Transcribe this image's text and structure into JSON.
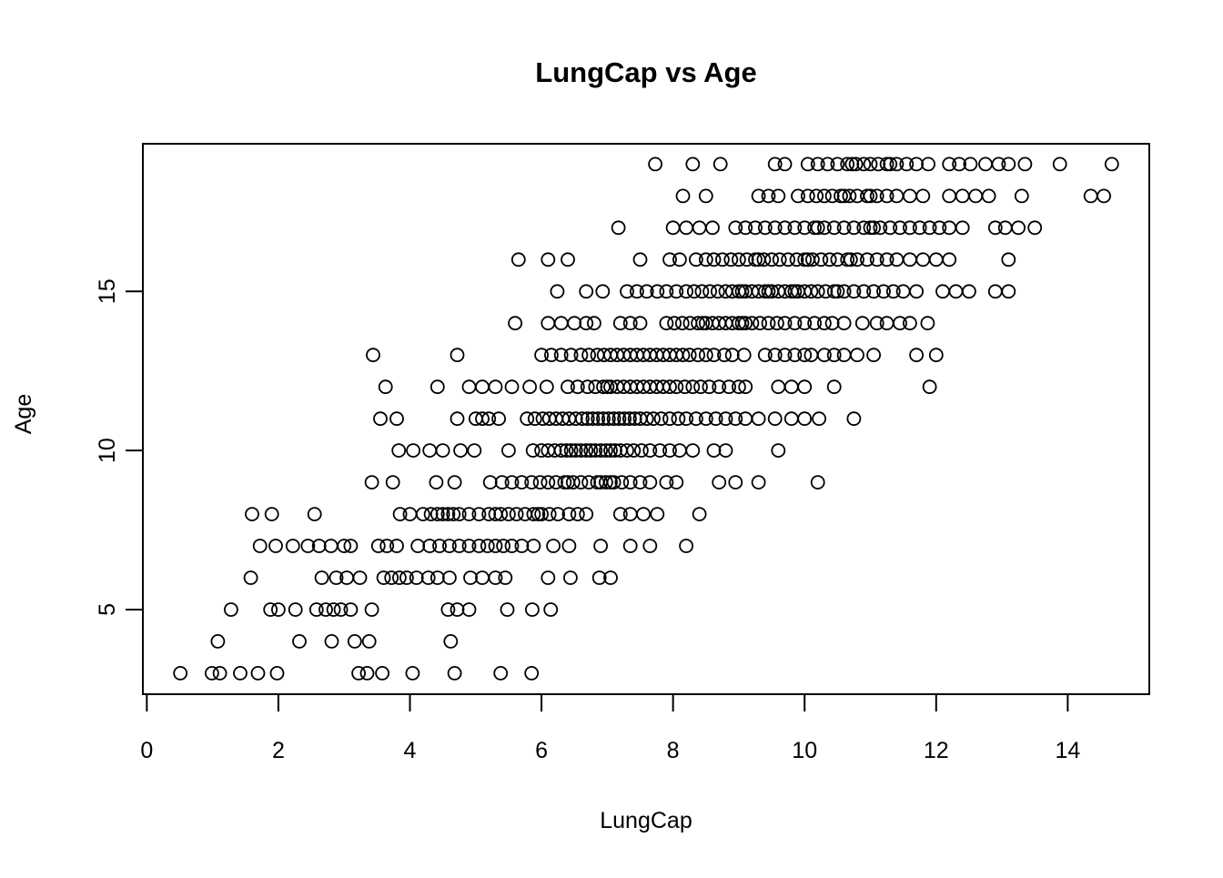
{
  "chart_data": {
    "type": "scatter",
    "title": "LungCap vs Age",
    "xlabel": "LungCap",
    "ylabel": "Age",
    "xlim": [
      -0.06,
      15.24
    ],
    "ylim": [
      2.34,
      19.64
    ],
    "x_ticks": [
      0,
      2,
      4,
      6,
      8,
      10,
      12,
      14
    ],
    "y_ticks": [
      5,
      10,
      15
    ],
    "grid": false,
    "legend": "none",
    "marker": "open-circle",
    "marker_color": "#000000",
    "points_by_age": {
      "3": [
        0.51,
        0.99,
        1.11,
        1.42,
        1.69,
        1.98,
        3.22,
        3.35,
        3.58,
        4.04,
        4.68,
        5.38,
        5.85
      ],
      "4": [
        1.08,
        2.32,
        2.81,
        3.16,
        3.38,
        4.62
      ],
      "5": [
        1.28,
        1.88,
        2.0,
        2.26,
        2.58,
        2.72,
        2.84,
        2.95,
        3.1,
        3.42,
        4.58,
        4.72,
        4.9,
        5.48,
        5.86,
        6.14
      ],
      "6": [
        1.58,
        2.66,
        2.88,
        3.04,
        3.24,
        3.6,
        3.72,
        3.84,
        3.95,
        4.1,
        4.28,
        4.42,
        4.6,
        4.92,
        5.1,
        5.3,
        5.45,
        6.1,
        6.44,
        6.88,
        7.05
      ],
      "7": [
        1.72,
        1.96,
        2.22,
        2.45,
        2.62,
        2.8,
        3.0,
        3.1,
        3.52,
        3.65,
        3.8,
        4.12,
        4.3,
        4.45,
        4.6,
        4.75,
        4.9,
        5.05,
        5.18,
        5.3,
        5.42,
        5.55,
        5.7,
        5.88,
        6.18,
        6.42,
        6.9,
        7.35,
        7.65,
        8.2
      ],
      "8": [
        1.6,
        1.9,
        2.55,
        3.85,
        4.0,
        4.2,
        4.32,
        4.42,
        4.5,
        4.58,
        4.66,
        4.75,
        4.9,
        5.05,
        5.2,
        5.3,
        5.38,
        5.5,
        5.62,
        5.75,
        5.88,
        5.95,
        6.0,
        6.12,
        6.25,
        6.42,
        6.55,
        6.68,
        7.2,
        7.35,
        7.55,
        7.76,
        8.4
      ],
      "9": [
        3.42,
        3.74,
        4.4,
        4.68,
        5.22,
        5.4,
        5.55,
        5.7,
        5.85,
        5.98,
        6.1,
        6.22,
        6.35,
        6.4,
        6.48,
        6.6,
        6.72,
        6.85,
        6.9,
        6.98,
        7.05,
        7.1,
        7.22,
        7.35,
        7.5,
        7.65,
        7.9,
        8.05,
        8.7,
        8.95,
        9.3,
        10.2
      ],
      "10": [
        3.83,
        4.05,
        4.3,
        4.5,
        4.77,
        4.98,
        5.5,
        5.87,
        6.0,
        6.1,
        6.2,
        6.3,
        6.38,
        6.45,
        6.52,
        6.6,
        6.68,
        6.75,
        6.82,
        6.9,
        6.98,
        7.05,
        7.12,
        7.2,
        7.3,
        7.4,
        7.52,
        7.65,
        7.8,
        7.95,
        8.1,
        8.3,
        8.62,
        8.8,
        9.6
      ],
      "11": [
        3.55,
        3.8,
        4.72,
        5.0,
        5.1,
        5.2,
        5.35,
        5.78,
        5.9,
        6.02,
        6.12,
        6.22,
        6.32,
        6.42,
        6.52,
        6.62,
        6.7,
        6.78,
        6.86,
        6.94,
        7.02,
        7.1,
        7.18,
        7.26,
        7.34,
        7.42,
        7.5,
        7.6,
        7.7,
        7.82,
        7.95,
        8.08,
        8.2,
        8.35,
        8.5,
        8.65,
        8.8,
        8.95,
        9.1,
        9.3,
        9.55,
        9.8,
        10.0,
        10.22,
        10.75
      ],
      "12": [
        3.63,
        4.42,
        4.9,
        5.1,
        5.3,
        5.55,
        5.82,
        6.08,
        6.4,
        6.55,
        6.7,
        6.82,
        6.94,
        7.0,
        7.05,
        7.15,
        7.25,
        7.35,
        7.45,
        7.55,
        7.65,
        7.75,
        7.85,
        7.95,
        8.05,
        8.18,
        8.3,
        8.42,
        8.55,
        8.7,
        8.85,
        9.0,
        9.1,
        9.6,
        9.8,
        10.0,
        10.45,
        11.9
      ],
      "13": [
        3.44,
        4.72,
        6.0,
        6.15,
        6.3,
        6.45,
        6.6,
        6.72,
        6.85,
        6.95,
        7.05,
        7.15,
        7.25,
        7.35,
        7.45,
        7.55,
        7.65,
        7.75,
        7.85,
        7.95,
        8.05,
        8.15,
        8.25,
        8.38,
        8.5,
        8.62,
        8.78,
        8.9,
        9.08,
        9.4,
        9.55,
        9.7,
        9.85,
        10.0,
        10.1,
        10.3,
        10.45,
        10.6,
        10.8,
        11.05,
        11.7,
        12.0
      ],
      "14": [
        5.6,
        6.1,
        6.3,
        6.5,
        6.68,
        6.8,
        7.2,
        7.35,
        7.5,
        7.9,
        8.02,
        8.14,
        8.26,
        8.38,
        8.45,
        8.5,
        8.6,
        8.7,
        8.8,
        8.9,
        9.0,
        9.05,
        9.1,
        9.2,
        9.32,
        9.45,
        9.58,
        9.7,
        9.85,
        10.0,
        10.15,
        10.3,
        10.42,
        10.6,
        10.88,
        11.1,
        11.25,
        11.45,
        11.6,
        11.87
      ],
      "15": [
        6.24,
        6.68,
        6.93,
        7.3,
        7.45,
        7.6,
        7.76,
        7.9,
        8.05,
        8.2,
        8.32,
        8.44,
        8.56,
        8.68,
        8.8,
        8.9,
        9.0,
        9.05,
        9.1,
        9.2,
        9.3,
        9.4,
        9.45,
        9.5,
        9.6,
        9.7,
        9.8,
        9.85,
        9.9,
        10.0,
        10.1,
        10.2,
        10.32,
        10.45,
        10.5,
        10.6,
        10.75,
        10.9,
        11.05,
        11.2,
        11.35,
        11.5,
        11.7,
        12.1,
        12.3,
        12.5,
        12.9,
        13.1
      ],
      "16": [
        5.65,
        6.1,
        6.4,
        7.5,
        7.95,
        8.1,
        8.35,
        8.5,
        8.62,
        8.75,
        8.88,
        9.0,
        9.12,
        9.25,
        9.3,
        9.38,
        9.5,
        9.62,
        9.75,
        9.88,
        10.0,
        10.05,
        10.12,
        10.25,
        10.38,
        10.5,
        10.65,
        10.7,
        10.8,
        10.95,
        11.1,
        11.25,
        11.4,
        11.6,
        11.8,
        12.0,
        12.2,
        13.1
      ],
      "17": [
        7.17,
        8.0,
        8.2,
        8.4,
        8.6,
        8.95,
        9.1,
        9.25,
        9.4,
        9.55,
        9.7,
        9.85,
        10.0,
        10.15,
        10.2,
        10.3,
        10.45,
        10.6,
        10.75,
        10.9,
        11.0,
        11.05,
        11.15,
        11.3,
        11.45,
        11.6,
        11.75,
        11.9,
        12.05,
        12.2,
        12.4,
        12.9,
        13.05,
        13.25,
        13.5
      ],
      "18": [
        8.15,
        8.5,
        9.3,
        9.45,
        9.6,
        9.9,
        10.05,
        10.18,
        10.3,
        10.42,
        10.55,
        10.6,
        10.68,
        10.8,
        10.95,
        11.0,
        11.1,
        11.25,
        11.4,
        11.6,
        11.8,
        12.2,
        12.4,
        12.6,
        12.8,
        13.3,
        14.35,
        14.55
      ],
      "19": [
        7.73,
        8.3,
        8.72,
        9.55,
        9.7,
        10.05,
        10.2,
        10.35,
        10.5,
        10.65,
        10.72,
        10.78,
        10.9,
        11.0,
        11.12,
        11.25,
        11.3,
        11.4,
        11.55,
        11.7,
        11.88,
        12.2,
        12.35,
        12.52,
        12.75,
        12.95,
        13.1,
        13.35,
        13.88,
        14.67
      ]
    }
  }
}
